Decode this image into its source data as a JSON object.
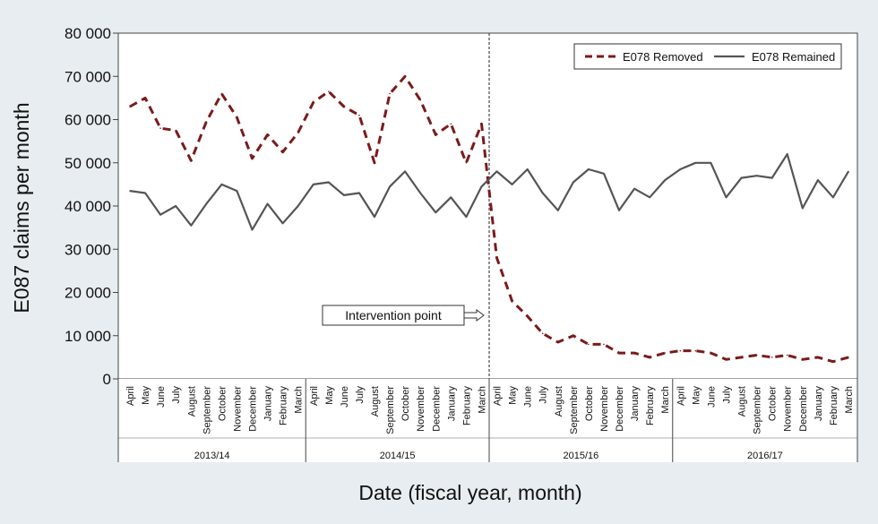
{
  "chart_data": {
    "type": "line",
    "title": "",
    "xlabel": "Date (fiscal year, month)",
    "ylabel": "E087 claims per month",
    "ylim": [
      0,
      80000
    ],
    "yticks": [
      0,
      10000,
      20000,
      30000,
      40000,
      50000,
      60000,
      70000,
      80000
    ],
    "ytick_labels": [
      "0",
      "10 000",
      "20 000",
      "30 000",
      "40 000",
      "50 000",
      "60 000",
      "70 000",
      "80 000"
    ],
    "grid": false,
    "legend_position": "top-right",
    "fiscal_years": [
      "2013/14",
      "2014/15",
      "2015/16",
      "2016/17"
    ],
    "months": [
      "April",
      "May",
      "June",
      "July",
      "August",
      "September",
      "October",
      "November",
      "December",
      "January",
      "February",
      "March"
    ],
    "series": [
      {
        "name": "E078 Removed",
        "style": "dashed",
        "color": "#7a1b1b",
        "values": [
          63000,
          65000,
          58000,
          57500,
          50500,
          59500,
          66000,
          60500,
          51000,
          56500,
          52500,
          57000,
          64000,
          66500,
          63000,
          61000,
          50000,
          66000,
          70000,
          64500,
          56500,
          59000,
          50000,
          59000,
          28000,
          18000,
          14500,
          10500,
          8500,
          10000,
          8000,
          8000,
          6000,
          6000,
          5000,
          6000,
          6500,
          6500,
          6000,
          4500,
          5000,
          5500,
          5000,
          5500,
          4500,
          5000,
          4000,
          5000
        ]
      },
      {
        "name": "E078 Remained",
        "style": "solid",
        "color": "#555555",
        "values": [
          43500,
          43000,
          38000,
          40000,
          35500,
          40500,
          45000,
          43500,
          34500,
          40500,
          36000,
          40000,
          45000,
          45500,
          42500,
          43000,
          37500,
          44500,
          48000,
          43000,
          38500,
          42000,
          37500,
          44500,
          48000,
          45000,
          48500,
          43000,
          39000,
          45500,
          48500,
          47500,
          39000,
          44000,
          42000,
          46000,
          48500,
          50000,
          50000,
          42000,
          46500,
          47000,
          46500,
          52000,
          39500,
          46000,
          42000,
          48000
        ]
      }
    ],
    "annotation": {
      "text": "Intervention point",
      "at_month_index": 24
    }
  }
}
